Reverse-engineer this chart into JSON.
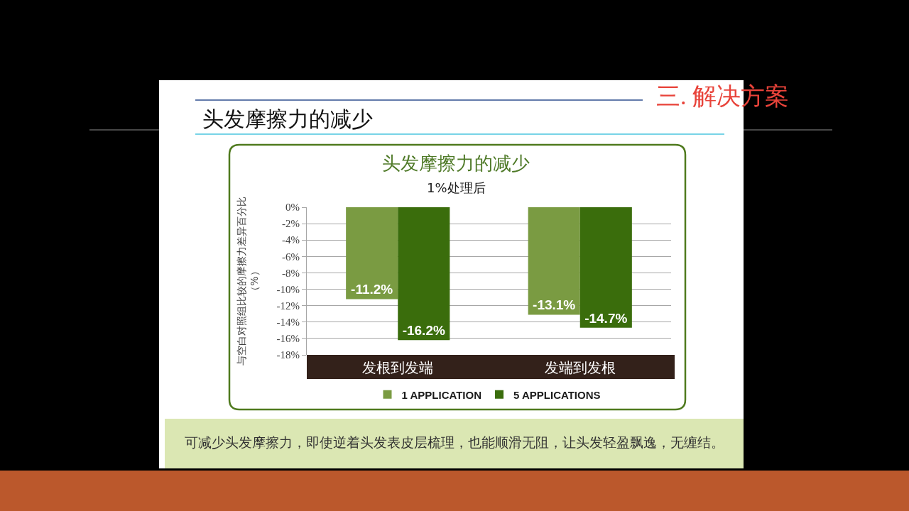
{
  "chart_data": {
    "type": "bar",
    "title": "头发摩擦力的减少",
    "subtitle": "1%处理后",
    "ylabel": "与空白对照组比较的摩擦力差异百分比（%）",
    "annotations": [
      "三. 解决方案",
      "头发摩擦力的减少",
      "可减少头发摩擦力，即使逆着头发表皮层梳理，也能顺滑无阻，让头发轻盈飘逸，无缠结。"
    ],
    "categories": [
      "发根到发端",
      "发端到发根"
    ],
    "series": [
      {
        "name": "1 APPLICATION",
        "color": "#7a9b42",
        "values": [
          -11.2,
          -13.1
        ],
        "value_labels": [
          "-11.2%",
          "-13.1%"
        ]
      },
      {
        "name": "5 APPLICATIONS",
        "color": "#3a6d0c",
        "values": [
          -16.2,
          -14.7
        ],
        "value_labels": [
          "-16.2%",
          "-14.7%"
        ]
      }
    ],
    "ylim": [
      -18,
      0
    ],
    "yticks": [
      {
        "value": 0,
        "label": "0%"
      },
      {
        "value": -2,
        "label": "-2%"
      },
      {
        "value": -4,
        "label": "-4%"
      },
      {
        "value": -6,
        "label": "-6%"
      },
      {
        "value": -8,
        "label": "-8%"
      },
      {
        "value": -10,
        "label": "-10%"
      },
      {
        "value": -12,
        "label": "-12%"
      },
      {
        "value": -14,
        "label": "-14%"
      },
      {
        "value": -16,
        "label": "-16%"
      },
      {
        "value": -18,
        "label": "-18%"
      }
    ],
    "grid": "y",
    "legend": "bottom"
  }
}
